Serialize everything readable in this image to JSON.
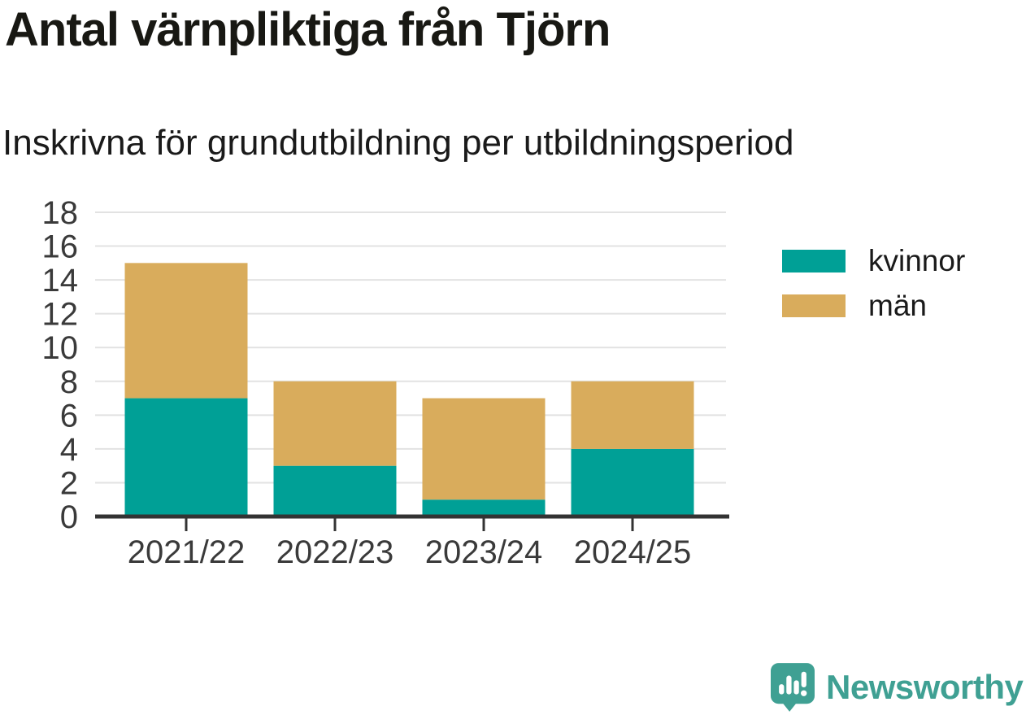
{
  "chart_data": {
    "type": "bar",
    "stacked": true,
    "title": "Antal värnpliktiga från Tjörn",
    "subtitle": "Inskrivna för grundutbildning per utbildningsperiod",
    "categories": [
      "2021/22",
      "2022/23",
      "2023/24",
      "2024/25"
    ],
    "series": [
      {
        "name": "kvinnor",
        "color": "#00A096",
        "values": [
          7,
          3,
          1,
          4
        ]
      },
      {
        "name": "män",
        "color": "#D9AC5C",
        "values": [
          8,
          5,
          6,
          4
        ]
      }
    ],
    "ylim": [
      0,
      18
    ],
    "yticks": [
      0,
      2,
      4,
      6,
      8,
      10,
      12,
      14,
      16,
      18
    ],
    "grid": true,
    "legend_position": "right"
  },
  "colors": {
    "kvinnor": "#00A096",
    "man": "#D9AC5C",
    "axis": "#333333",
    "tick_label": "#3A3A3A",
    "gridline": "#E2E2E2"
  },
  "branding": {
    "wordmark": "Newsworthy",
    "color": "#3FA093"
  }
}
